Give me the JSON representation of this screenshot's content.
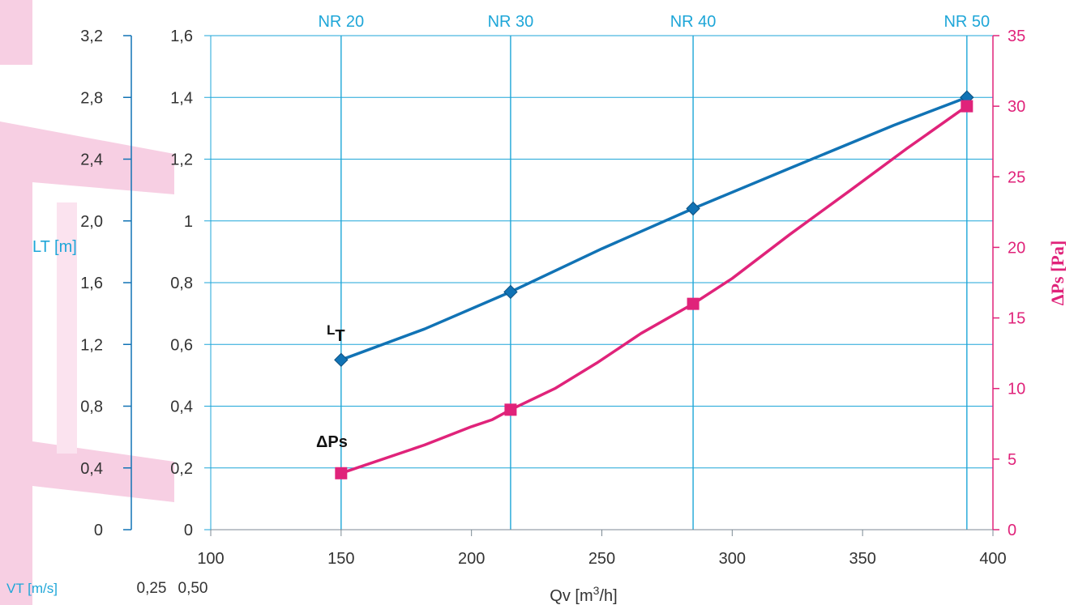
{
  "chart_data": {
    "type": "line",
    "x_label": "Qv [m³/h]",
    "x_ticks": [
      100,
      150,
      200,
      250,
      300,
      350,
      400
    ],
    "x_tick_labels": [
      "100",
      "150",
      "200",
      "250",
      "300",
      "350",
      "400"
    ],
    "xlim": [
      100,
      400
    ],
    "y_left_ticks": [
      0,
      0.2,
      0.4,
      0.6,
      0.8,
      1,
      1.2,
      1.4,
      1.6
    ],
    "y_left_tick_labels": [
      "0",
      "0,2",
      "0,4",
      "0,6",
      "0,8",
      "1",
      "1,2",
      "1,4",
      "1,6"
    ],
    "ylim_left": [
      0,
      1.6
    ],
    "lt_axis_label": "LT [m]",
    "lt_axis_ticks": [
      0,
      0.4,
      0.8,
      1.2,
      1.6,
      2.0,
      2.4,
      2.8,
      3.2
    ],
    "lt_axis_tick_labels": [
      "0",
      "0,4",
      "0,8",
      "1,2",
      "1,6",
      "2,0",
      "2,4",
      "2,8",
      "3,2"
    ],
    "y_right_label": "ΔPs [Pa]",
    "y_right_ticks": [
      0,
      5,
      10,
      15,
      20,
      25,
      30,
      35
    ],
    "y_right_tick_labels": [
      "0",
      "5",
      "10",
      "15",
      "20",
      "25",
      "30",
      "35"
    ],
    "ylim_right": [
      0,
      35
    ],
    "vt_label": "VT [m/s]",
    "vt_values": [
      "0,25",
      "0,50"
    ],
    "nr_lines": [
      {
        "label": "NR 20",
        "x": 150
      },
      {
        "label": "NR 30",
        "x": 215
      },
      {
        "label": "NR 40",
        "x": 285
      },
      {
        "label": "NR 50",
        "x": 390
      }
    ],
    "grid": true,
    "series": [
      {
        "name": "LT",
        "axis": "left",
        "color": "#1173b5",
        "marker": "diamond",
        "points": [
          [
            150,
            0.55
          ],
          [
            215,
            0.77
          ],
          [
            285,
            1.04
          ],
          [
            390,
            1.4
          ]
        ],
        "curve": [
          [
            150,
            0.55
          ],
          [
            182,
            0.65
          ],
          [
            215,
            0.77
          ],
          [
            250,
            0.91
          ],
          [
            285,
            1.04
          ],
          [
            322,
            1.17
          ],
          [
            362,
            1.31
          ],
          [
            390,
            1.4
          ]
        ]
      },
      {
        "name": "ΔPs",
        "axis": "right",
        "color": "#e0237a",
        "marker": "square",
        "points": [
          [
            150,
            4
          ],
          [
            215,
            8.5
          ],
          [
            285,
            16
          ],
          [
            390,
            30
          ]
        ],
        "curve": [
          [
            150,
            4
          ],
          [
            182,
            6
          ],
          [
            200,
            7.3
          ],
          [
            208,
            7.8
          ],
          [
            215,
            8.5
          ],
          [
            232,
            10
          ],
          [
            248,
            11.8
          ],
          [
            265,
            13.9
          ],
          [
            285,
            16
          ],
          [
            300,
            17.8
          ],
          [
            322,
            20.9
          ],
          [
            345,
            24.0
          ],
          [
            367,
            27.0
          ],
          [
            390,
            30
          ]
        ]
      }
    ]
  }
}
